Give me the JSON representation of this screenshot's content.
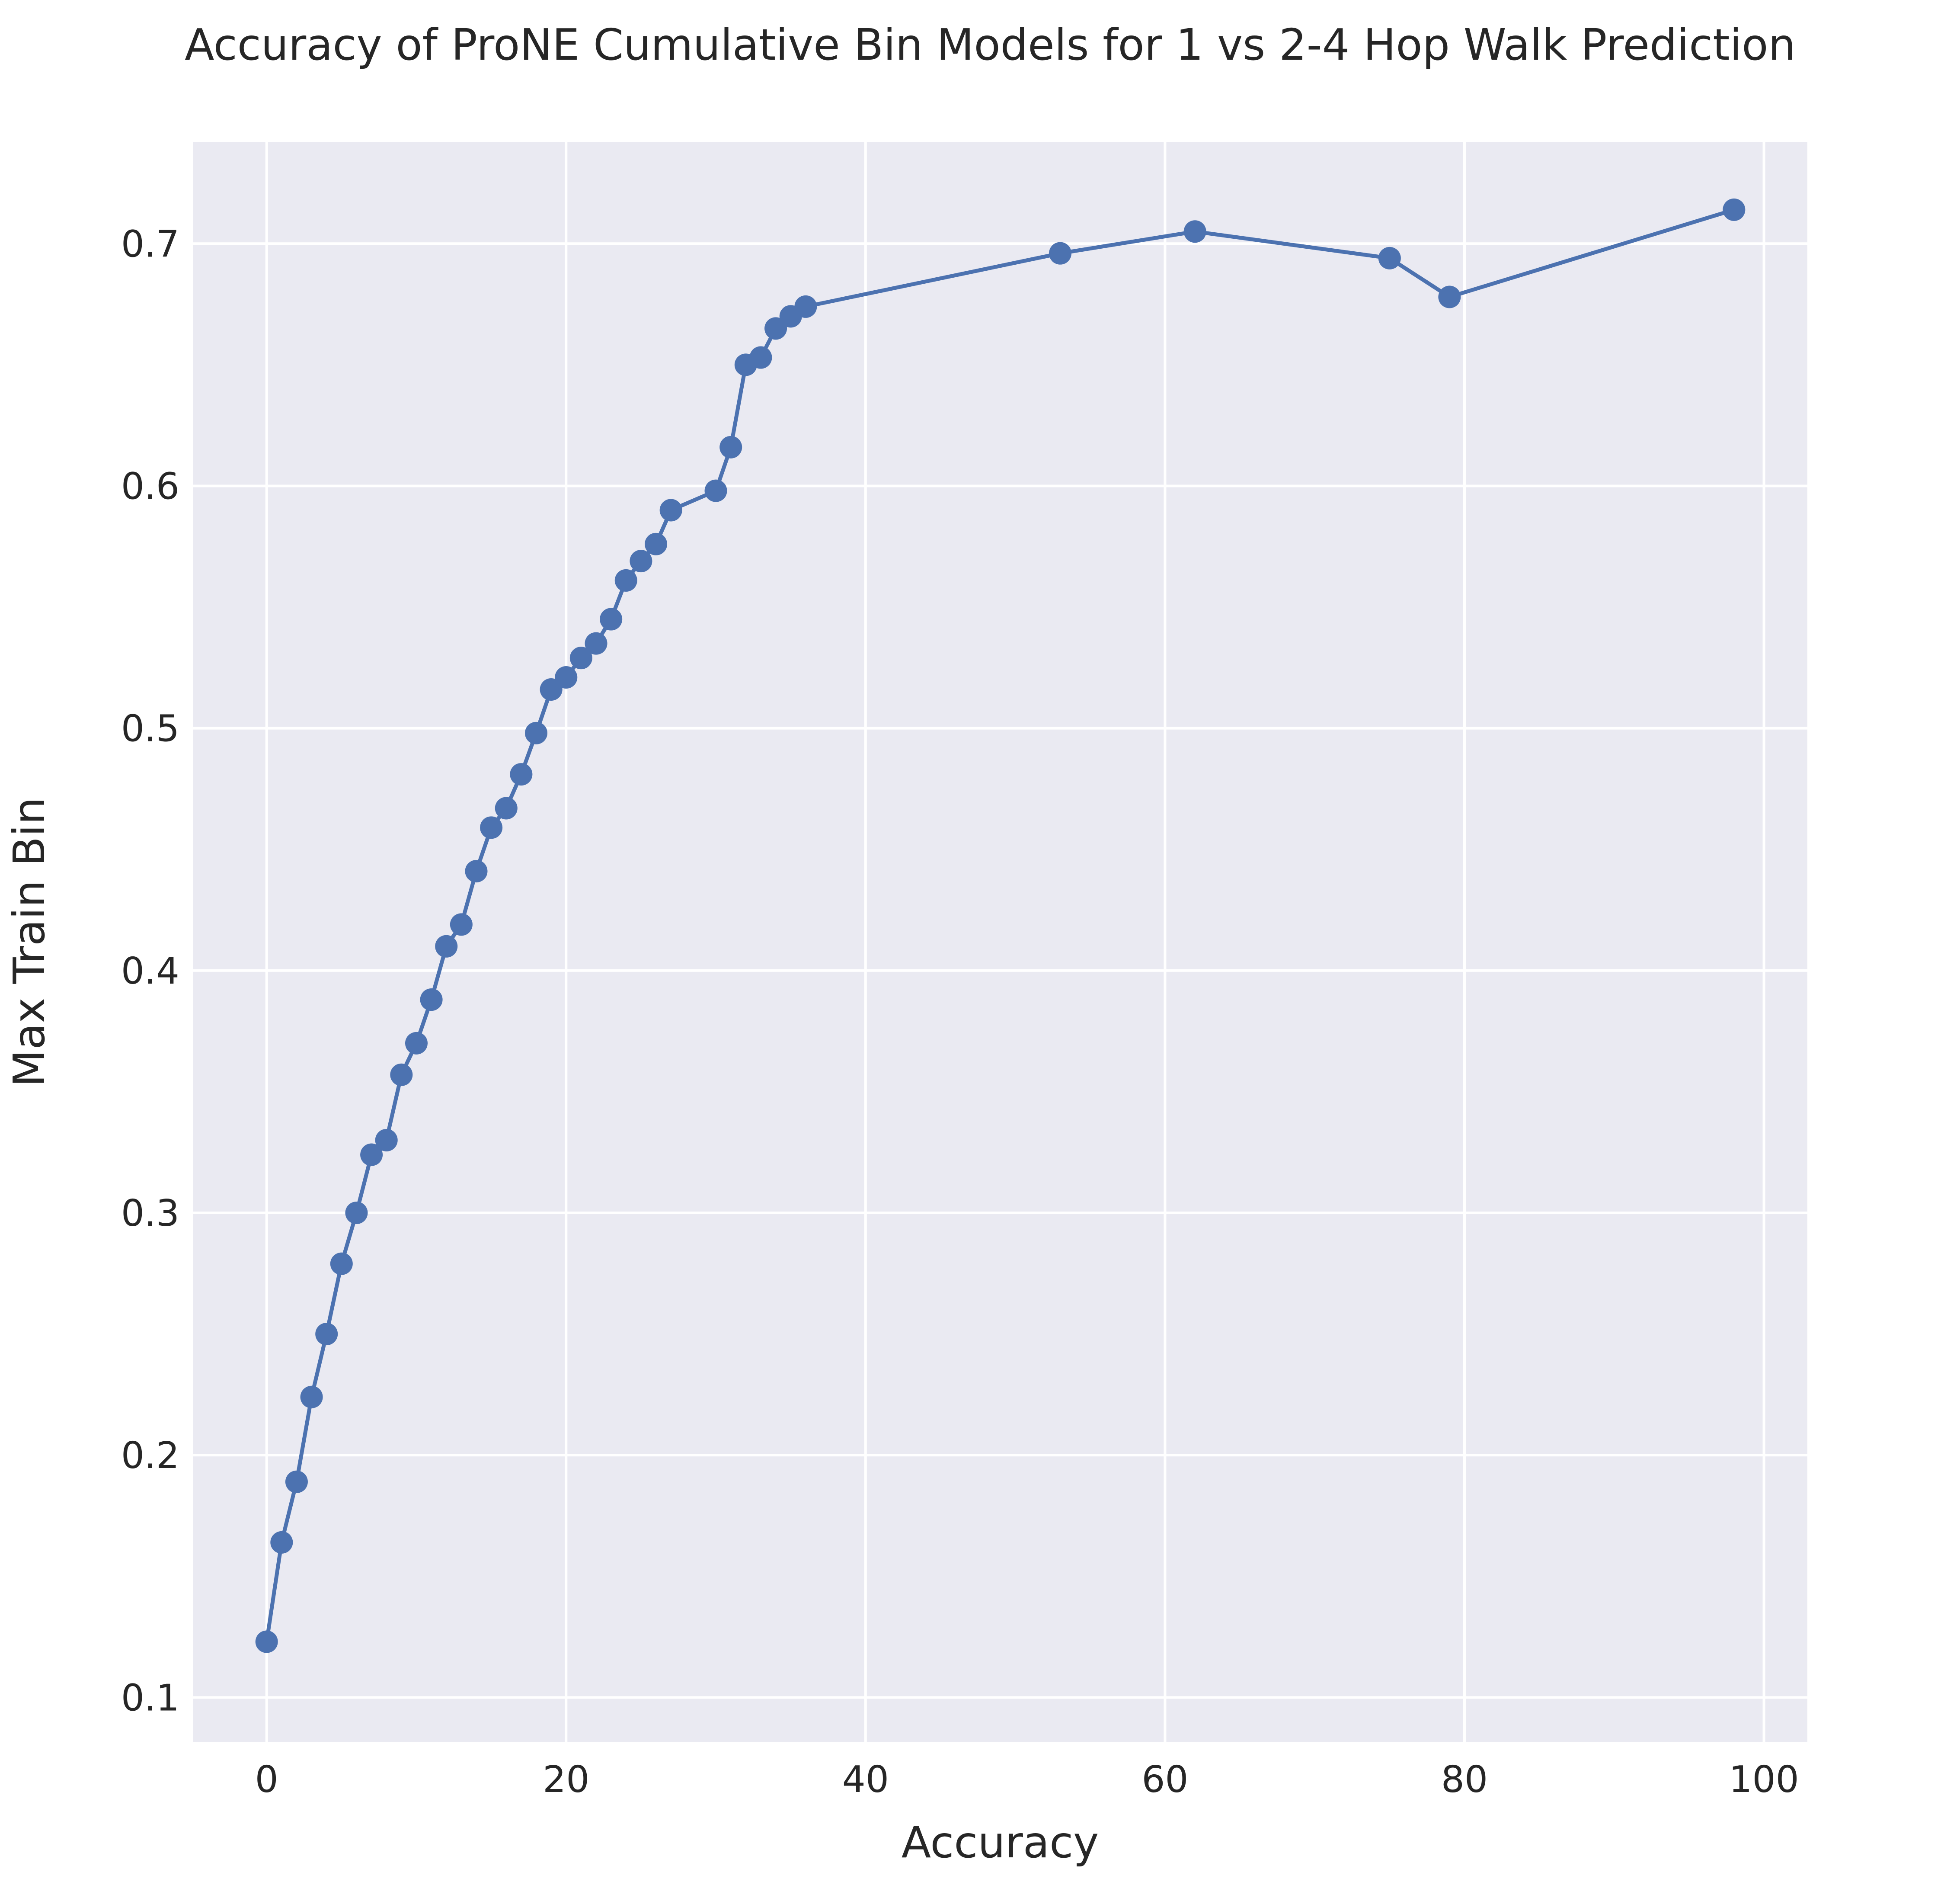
{
  "chart_data": {
    "type": "line",
    "title": "Accuracy of ProNE Cumulative Bin Models for 1 vs 2-4 Hop Walk Prediction",
    "xlabel": "Accuracy",
    "ylabel": "Max Train Bin",
    "xlim": [
      -4.9,
      102.9
    ],
    "ylim": [
      0.0815,
      0.742
    ],
    "xticks": [
      0,
      20,
      40,
      60,
      80,
      100
    ],
    "xtick_labels": [
      "0",
      "20",
      "40",
      "60",
      "80",
      "100"
    ],
    "yticks": [
      0.1,
      0.2,
      0.3,
      0.4,
      0.5,
      0.6,
      0.7
    ],
    "ytick_labels": [
      "0.1",
      "0.2",
      "0.3",
      "0.4",
      "0.5",
      "0.6",
      "0.7"
    ],
    "grid": true,
    "background_color": "#EAEAF2",
    "series": [
      {
        "color": "#4C72B0",
        "marker": "circle",
        "x": [
          0,
          1,
          2,
          3,
          4,
          5,
          6,
          7,
          8,
          9,
          10,
          11,
          12,
          13,
          14,
          15,
          16,
          17,
          18,
          19,
          20,
          21,
          22,
          23,
          24,
          25,
          26,
          27,
          30,
          31,
          32,
          33,
          34,
          35,
          36,
          53,
          62,
          75,
          79,
          98
        ],
        "y": [
          0.123,
          0.164,
          0.189,
          0.224,
          0.25,
          0.279,
          0.3,
          0.324,
          0.33,
          0.357,
          0.37,
          0.388,
          0.41,
          0.419,
          0.441,
          0.459,
          0.467,
          0.481,
          0.498,
          0.516,
          0.521,
          0.529,
          0.535,
          0.545,
          0.561,
          0.569,
          0.576,
          0.59,
          0.598,
          0.616,
          0.65,
          0.653,
          0.665,
          0.67,
          0.674,
          0.696,
          0.705,
          0.694,
          0.678,
          0.714
        ]
      }
    ]
  }
}
